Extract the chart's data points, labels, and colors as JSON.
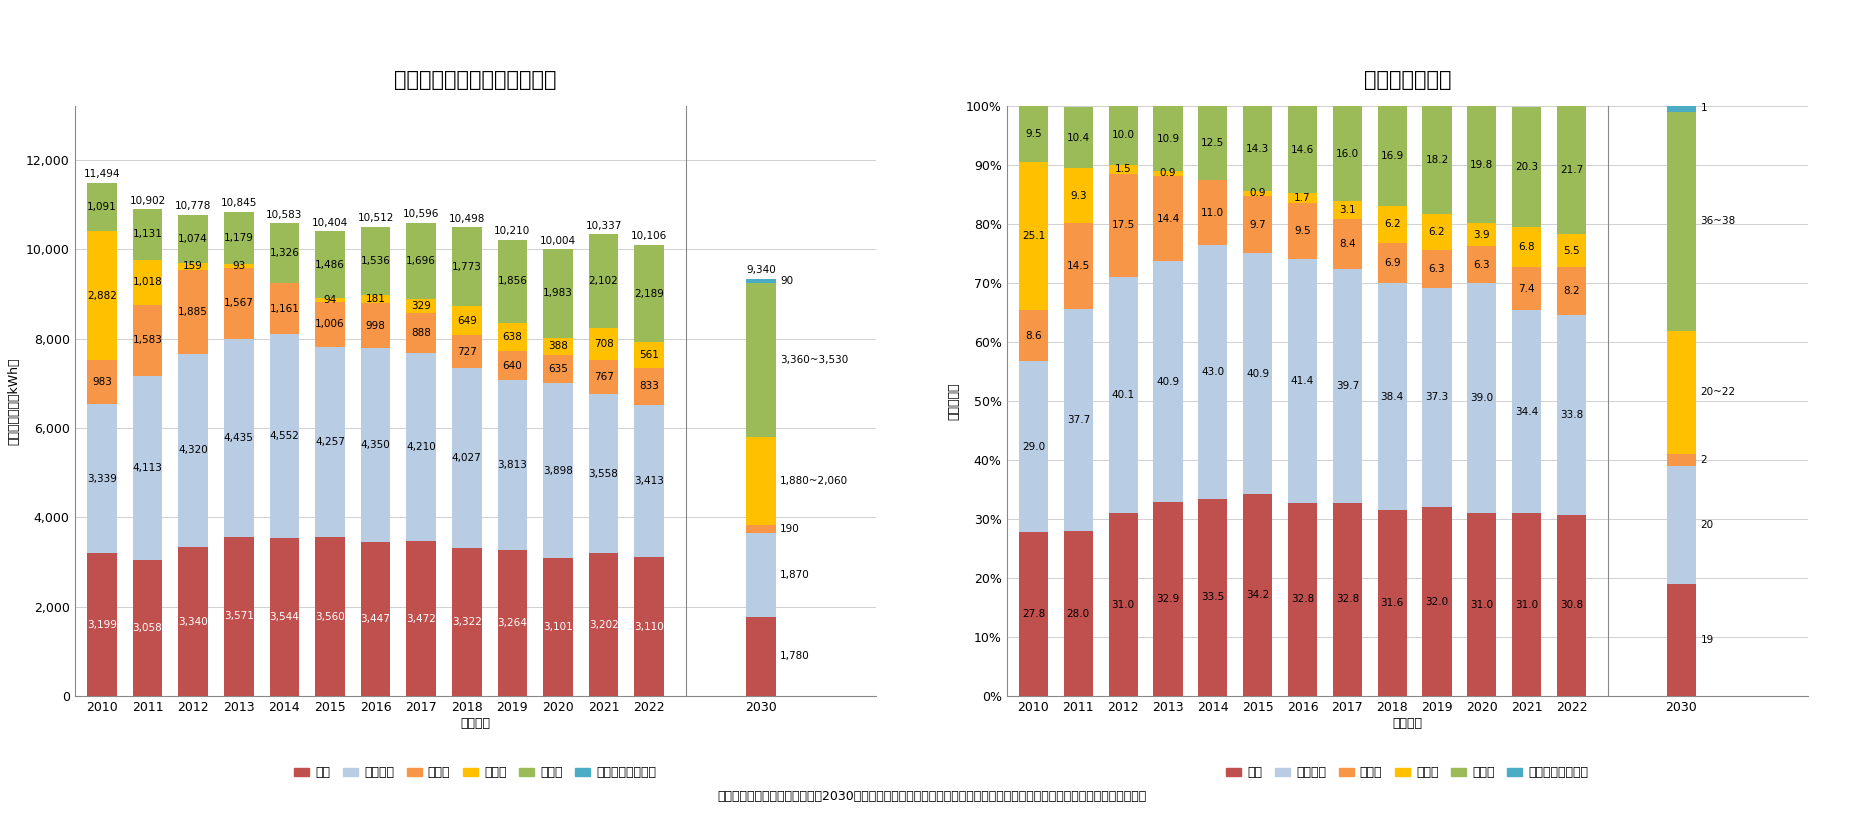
{
  "title1": "電源種別の発電電力量の推移",
  "title2": "電源構成の推移",
  "ylabel1": "発電電力量（億kWh）",
  "ylabel2": "電源構成比",
  "xlabel": "（年度）",
  "source_text": "＜出典＞エネルギー需給実績、2030年度におけるエネルギー需給の見通し（関連資料）　（資源エネルギー庁）を基に作成",
  "years": [
    2010,
    2011,
    2012,
    2013,
    2014,
    2015,
    2016,
    2017,
    2018,
    2019,
    2020,
    2021,
    2022
  ],
  "year_2030_label": "2030",
  "colors": {
    "coal": "#c0504d",
    "gas": "#b8cce4",
    "oil": "#f79646",
    "nuclear": "#ffc000",
    "renewable": "#9bbb59",
    "hydrogen": "#4bacc6"
  },
  "legend_labels": [
    "石炭",
    "天然ガス",
    "石油等",
    "原子力",
    "再エネ",
    "水素・アンモニア"
  ],
  "bar1": {
    "coal": [
      3199,
      3058,
      3340,
      3571,
      3544,
      3560,
      3447,
      3472,
      3322,
      3264,
      3101,
      3202,
      3110
    ],
    "gas": [
      3339,
      4113,
      4320,
      4435,
      4552,
      4257,
      4350,
      4210,
      4027,
      3813,
      3898,
      3558,
      3413
    ],
    "oil": [
      983,
      1583,
      1885,
      1567,
      1161,
      1006,
      998,
      888,
      727,
      640,
      635,
      767,
      833
    ],
    "nuclear": [
      2882,
      1018,
      159,
      93,
      0,
      94,
      181,
      329,
      649,
      638,
      388,
      708,
      561
    ],
    "renewable": [
      1091,
      1131,
      1074,
      1179,
      1326,
      1486,
      1536,
      1696,
      1773,
      1856,
      1983,
      2102,
      2189
    ],
    "hydrogen": [
      0,
      0,
      0,
      0,
      0,
      0,
      0,
      0,
      0,
      0,
      0,
      0,
      0
    ],
    "totals": [
      11494,
      10902,
      10778,
      10845,
      10583,
      10404,
      10512,
      10596,
      10498,
      10210,
      10004,
      10337,
      10106
    ]
  },
  "bar1_2030": {
    "coal": 1780,
    "gas": 1870,
    "oil": 190,
    "nuclear_lo": 1880,
    "nuclear_hi": 2060,
    "renewable_lo": 3360,
    "renewable_hi": 3530,
    "hydrogen": 90,
    "total": 9340
  },
  "bar2": {
    "coal": [
      27.8,
      28.0,
      31.0,
      32.9,
      33.5,
      34.2,
      32.8,
      32.8,
      31.6,
      32.0,
      31.0,
      31.0,
      30.8
    ],
    "gas": [
      29.0,
      37.7,
      40.1,
      40.9,
      43.0,
      40.9,
      41.4,
      39.7,
      38.4,
      37.3,
      39.0,
      34.4,
      33.8
    ],
    "oil": [
      8.6,
      14.5,
      17.5,
      14.4,
      11.0,
      9.7,
      9.5,
      8.4,
      6.9,
      6.3,
      6.3,
      7.4,
      8.2
    ],
    "nuclear": [
      25.1,
      9.3,
      1.5,
      0.9,
      0.0,
      0.9,
      1.7,
      3.1,
      6.2,
      6.2,
      3.9,
      6.8,
      5.5
    ],
    "renewable": [
      9.5,
      10.4,
      10.0,
      10.9,
      12.5,
      14.3,
      14.6,
      16.0,
      16.9,
      18.2,
      19.8,
      20.3,
      21.7
    ],
    "hydrogen": [
      0,
      0,
      0,
      0,
      0,
      0,
      0,
      0,
      0,
      0,
      0,
      0,
      0
    ]
  },
  "bar2_2030": {
    "coal": 19,
    "gas": 20,
    "oil": 2,
    "nuclear_lo": 20,
    "nuclear_hi": 22,
    "renewable_lo": 36,
    "renewable_hi": 38,
    "hydrogen": 1
  },
  "background_color": "#ffffff",
  "grid_color": "#bebebe",
  "title_fontsize": 15,
  "label_fontsize": 9,
  "tick_fontsize": 9,
  "legend_fontsize": 9,
  "annot_fontsize": 7.5
}
